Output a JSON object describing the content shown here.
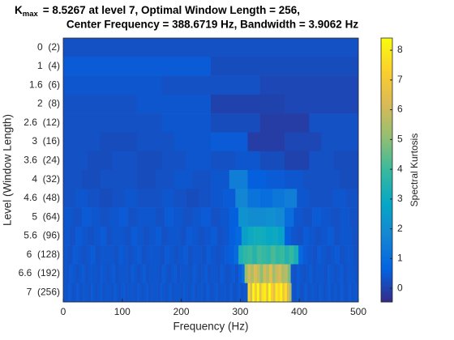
{
  "chart_data": {
    "type": "heatmap",
    "title_symbol": "K",
    "title_subscript": "max",
    "title_line1": "= 8.5267 at level 7, Optimal Window Length = 256,",
    "title_line2": "Center Frequency = 388.6719 Hz, Bandwidth = 3.9062 Hz",
    "xlabel": "Frequency (Hz)",
    "ylabel": "Level (Window Length)",
    "colorbar_label": "Spectral Kurtosis",
    "xlim": [
      0,
      500
    ],
    "xticks": [
      0,
      100,
      200,
      300,
      400,
      500
    ],
    "clim": [
      -0.46,
      8.41
    ],
    "cticks": [
      0,
      1,
      2,
      3,
      4,
      5,
      6,
      7,
      8
    ],
    "colormap": [
      "#352a87",
      "#0363e1",
      "#1485d4",
      "#06a7c6",
      "#38b99e",
      "#92bf73",
      "#d9ba56",
      "#fcce2e",
      "#f9fb0e"
    ],
    "rows": [
      {
        "label": "0  (2)",
        "values": [
          0.3
        ]
      },
      {
        "label": "1  (4)",
        "values": [
          0.5,
          0.2
        ]
      },
      {
        "label": "1.6  (6)",
        "values": [
          0.4,
          0.3,
          0.1
        ]
      },
      {
        "label": "2  (8)",
        "values": [
          0.3,
          0.4,
          0.0,
          0.1
        ]
      },
      {
        "label": "2.6  (12)",
        "values": [
          0.3,
          0.3,
          0.4,
          0.2,
          -0.1,
          0.3
        ]
      },
      {
        "label": "3  (16)",
        "values": [
          0.3,
          0.2,
          0.3,
          0.4,
          0.5,
          -0.1,
          0.1,
          0.3
        ]
      },
      {
        "label": "3.6  (24)",
        "values": [
          0.3,
          0.2,
          0.3,
          0.2,
          0.3,
          0.4,
          0.3,
          0.4,
          0.2,
          0.0,
          0.3,
          0.2
        ]
      },
      {
        "label": "4  (32)",
        "values": [
          0.3,
          0.2,
          0.3,
          0.3,
          0.2,
          0.3,
          0.4,
          0.3,
          0.4,
          1.5,
          0.6,
          0.5,
          0.4,
          0.3,
          0.3,
          0.2
        ]
      },
      {
        "label": "4.6  (48)",
        "values": [
          0.3,
          0.4,
          0.3,
          0.2,
          0.3,
          0.4,
          0.3,
          0.3,
          0.4,
          0.3,
          0.2,
          0.3,
          0.4,
          0.5,
          1.8,
          1.2,
          1.0,
          1.3,
          1.5,
          0.4,
          0.3,
          0.3,
          0.4,
          0.3
        ]
      },
      {
        "label": "5  (64)",
        "values": [
          0.4,
          0.3,
          0.5,
          0.4,
          0.3,
          0.4,
          0.5,
          0.3,
          0.4,
          0.4,
          0.3,
          0.5,
          0.4,
          0.3,
          0.4,
          0.5,
          0.3,
          0.4,
          0.6,
          2.2,
          2.0,
          2.0,
          2.1,
          1.9,
          1.0,
          0.4,
          0.3,
          0.5,
          0.4,
          0.3,
          0.4,
          0.3
        ]
      },
      {
        "label": "5.6  (96)",
        "values": [
          0.4,
          0.3,
          0.5,
          0.4,
          0.3,
          0.4,
          0.5,
          0.3,
          0.4,
          0.4,
          0.3,
          0.5,
          0.4,
          0.3,
          0.4,
          0.5,
          0.3,
          0.4,
          0.4,
          0.3,
          0.5,
          0.4,
          0.3,
          0.4,
          0.5,
          0.3,
          0.4,
          0.6,
          0.8,
          2.6,
          3.0,
          3.2,
          3.1,
          2.9,
          3.0,
          2.7,
          0.6,
          0.4,
          0.3,
          0.5,
          0.4,
          0.3,
          0.4,
          0.5,
          0.3,
          0.4,
          0.4,
          0.3
        ]
      },
      {
        "label": "6  (128)",
        "values": [
          0.4,
          0.3,
          0.5,
          0.4,
          0.3,
          0.4,
          0.5,
          0.3,
          0.4,
          0.4,
          0.4,
          0.3,
          0.5,
          0.4,
          0.3,
          0.4,
          0.5,
          0.3,
          0.4,
          0.4,
          0.4,
          0.3,
          0.5,
          0.4,
          0.3,
          0.4,
          0.5,
          0.3,
          0.4,
          0.4,
          0.3,
          0.5,
          0.4,
          0.3,
          0.4,
          0.5,
          0.6,
          0.9,
          3.4,
          3.8,
          4.0,
          3.6,
          4.1,
          3.9,
          3.7,
          4.2,
          3.8,
          4.0,
          3.5,
          3.9,
          3.3,
          0.8,
          0.5,
          0.4,
          0.3,
          0.5,
          0.4,
          0.3,
          0.4,
          0.5,
          0.3,
          0.4,
          0.4,
          0.3
        ]
      },
      {
        "label": "6.6  (192)",
        "values": [
          0.4,
          0.3,
          0.5,
          0.4,
          0.3,
          0.4,
          0.5,
          0.3,
          0.4,
          0.4,
          0.4,
          0.3,
          0.5,
          0.4,
          0.3,
          0.4,
          0.5,
          0.3,
          0.4,
          0.4,
          0.4,
          0.3,
          0.5,
          0.4,
          0.3,
          0.4,
          0.5,
          0.3,
          0.4,
          0.4,
          0.4,
          0.3,
          0.5,
          0.4,
          0.3,
          0.4,
          0.5,
          0.3,
          0.4,
          0.4,
          0.4,
          0.3,
          0.5,
          0.4,
          0.3,
          0.4,
          0.5,
          0.3,
          0.4,
          0.4,
          0.3,
          0.5,
          0.4,
          0.3,
          0.4,
          0.5,
          0.3,
          0.6,
          1.0,
          5.2,
          6.0,
          5.5,
          6.3,
          5.8,
          5.0,
          6.1,
          5.6,
          6.4,
          5.3,
          5.9,
          6.2,
          5.4,
          5.7,
          4.8,
          0.4,
          0.3,
          0.5,
          0.4,
          0.3,
          0.4,
          0.5,
          0.3,
          0.4,
          0.4,
          0.4,
          0.3,
          0.5,
          0.4,
          0.3,
          0.4,
          0.5,
          0.3,
          0.4,
          0.4,
          0.4,
          0.3
        ]
      },
      {
        "label": "7  (256)",
        "values": [
          0.4,
          0.3,
          0.5,
          0.4,
          0.3,
          0.4,
          0.5,
          0.3,
          0.4,
          0.4,
          0.4,
          0.3,
          0.5,
          0.4,
          0.3,
          0.4,
          0.5,
          0.3,
          0.4,
          0.4,
          0.4,
          0.3,
          0.5,
          0.4,
          0.3,
          0.4,
          0.5,
          0.3,
          0.4,
          0.4,
          0.4,
          0.3,
          0.5,
          0.4,
          0.3,
          0.4,
          0.5,
          0.3,
          0.4,
          0.4,
          0.4,
          0.3,
          0.5,
          0.4,
          0.3,
          0.4,
          0.5,
          0.3,
          0.4,
          0.4,
          0.4,
          0.3,
          0.5,
          0.4,
          0.3,
          0.4,
          0.5,
          0.3,
          0.4,
          0.4,
          0.4,
          0.3,
          0.5,
          0.4,
          0.3,
          0.4,
          0.5,
          0.3,
          0.4,
          0.4,
          0.4,
          0.3,
          0.5,
          0.4,
          0.3,
          0.4,
          0.5,
          0.3,
          0.4,
          0.4,
          7.5,
          6.2,
          8.3,
          7.0,
          8.5,
          6.5,
          7.8,
          8.1,
          6.8,
          8.4,
          7.2,
          6.6,
          8.0,
          7.4,
          8.2,
          6.9,
          7.7,
          6.3,
          5.5,
          0.4,
          0.3,
          0.5,
          0.4,
          0.3,
          0.4,
          0.5,
          0.3,
          0.4,
          0.4,
          0.4,
          0.3,
          0.5,
          0.4,
          0.3,
          0.4,
          0.5,
          0.3,
          0.4,
          0.4,
          0.3,
          0.5,
          0.4,
          0.3,
          0.4,
          0.5,
          0.3,
          0.4,
          0.4
        ]
      }
    ]
  }
}
